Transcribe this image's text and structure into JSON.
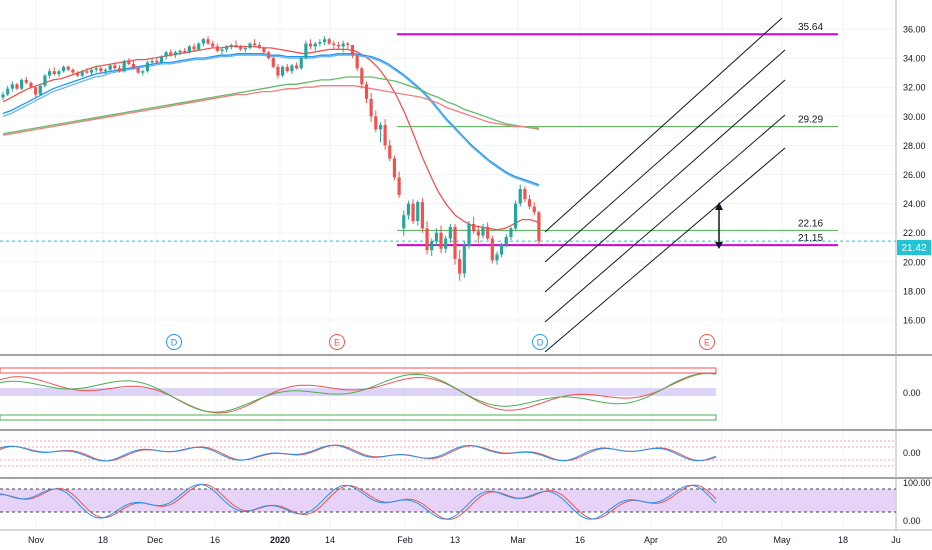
{
  "chart_data": {
    "type": "candlestick",
    "price_axis": {
      "ticks": [
        "36.00",
        "34.00",
        "32.00",
        "30.00",
        "28.00",
        "26.00",
        "24.00",
        "22.00",
        "20.00",
        "18.00",
        "16.00"
      ],
      "range": [
        14.8,
        37.0
      ]
    },
    "time_axis": {
      "labels": [
        "Nov",
        "18",
        "Dec",
        "16",
        "2020",
        "14",
        "Feb",
        "13",
        "Mar",
        "16",
        "Apr",
        "20",
        "May",
        "18",
        "Ju"
      ]
    },
    "last_price": {
      "label": "21.42",
      "value": 21.42
    },
    "levels": [
      {
        "label": "35.64",
        "value": 35.64,
        "color": "#d400d4"
      },
      {
        "label": "29.29",
        "value": 29.29,
        "color": "#4caf50"
      },
      {
        "label": "22.16",
        "value": 22.16,
        "color": "#4caf50"
      },
      {
        "label": "21.15",
        "value": 21.15,
        "color": "#d400d4"
      }
    ],
    "event_markers": [
      {
        "letter": "D",
        "color": "#2196f3"
      },
      {
        "letter": "E",
        "color": "#ef5350"
      },
      {
        "letter": "D",
        "color": "#2196f3"
      },
      {
        "letter": "E",
        "color": "#ef5350"
      }
    ],
    "candles": [
      [
        31.3,
        31.7,
        31.1,
        31.5
      ],
      [
        31.5,
        32.1,
        31.4,
        31.9
      ],
      [
        31.9,
        32.4,
        31.7,
        32.2
      ],
      [
        32.2,
        32.3,
        31.8,
        31.9
      ],
      [
        31.9,
        32.6,
        31.8,
        32.5
      ],
      [
        32.5,
        32.7,
        32.2,
        32.3
      ],
      [
        32.3,
        32.4,
        31.9,
        32.0
      ],
      [
        32.0,
        32.1,
        31.3,
        31.5
      ],
      [
        31.5,
        32.2,
        31.4,
        32.1
      ],
      [
        32.1,
        32.9,
        32.0,
        32.8
      ],
      [
        32.8,
        33.3,
        32.6,
        33.1
      ],
      [
        33.1,
        33.4,
        32.8,
        32.9
      ],
      [
        32.9,
        33.2,
        32.7,
        33.1
      ],
      [
        33.1,
        33.5,
        33.0,
        33.4
      ],
      [
        33.4,
        33.5,
        33.1,
        33.2
      ],
      [
        33.2,
        33.3,
        32.9,
        33.0
      ],
      [
        33.0,
        33.1,
        32.7,
        32.8
      ],
      [
        32.8,
        33.2,
        32.7,
        33.1
      ],
      [
        33.1,
        33.3,
        32.9,
        33.0
      ],
      [
        33.0,
        33.3,
        32.8,
        33.2
      ],
      [
        33.2,
        33.5,
        33.0,
        33.3
      ],
      [
        33.3,
        33.4,
        33.0,
        33.1
      ],
      [
        33.1,
        33.3,
        32.9,
        33.2
      ],
      [
        33.2,
        33.6,
        33.1,
        33.5
      ],
      [
        33.5,
        33.7,
        33.2,
        33.3
      ],
      [
        33.3,
        33.5,
        33.0,
        33.1
      ],
      [
        33.1,
        33.9,
        33.0,
        33.8
      ],
      [
        33.8,
        34.0,
        33.5,
        33.6
      ],
      [
        33.6,
        33.8,
        33.2,
        33.3
      ],
      [
        33.3,
        33.4,
        32.9,
        33.0
      ],
      [
        33.0,
        33.2,
        32.8,
        33.1
      ],
      [
        33.1,
        33.8,
        33.0,
        33.7
      ],
      [
        33.7,
        34.0,
        33.5,
        33.8
      ],
      [
        33.8,
        34.0,
        33.6,
        33.7
      ],
      [
        33.7,
        34.2,
        33.6,
        34.1
      ],
      [
        34.1,
        34.5,
        33.9,
        34.4
      ],
      [
        34.4,
        34.6,
        34.1,
        34.2
      ],
      [
        34.2,
        34.5,
        34.0,
        34.4
      ],
      [
        34.4,
        34.6,
        34.2,
        34.5
      ],
      [
        34.5,
        34.7,
        34.3,
        34.4
      ],
      [
        34.4,
        34.9,
        34.3,
        34.8
      ],
      [
        34.8,
        35.0,
        34.5,
        34.6
      ],
      [
        34.6,
        35.1,
        34.5,
        35.0
      ],
      [
        35.0,
        35.4,
        34.8,
        35.3
      ],
      [
        35.3,
        35.5,
        34.9,
        35.0
      ],
      [
        35.0,
        35.2,
        34.7,
        34.8
      ],
      [
        34.8,
        35.0,
        34.4,
        34.5
      ],
      [
        34.5,
        34.7,
        34.2,
        34.6
      ],
      [
        34.6,
        34.9,
        34.4,
        34.8
      ],
      [
        34.8,
        35.0,
        34.6,
        34.9
      ],
      [
        34.9,
        35.2,
        34.7,
        34.8
      ],
      [
        34.8,
        34.9,
        34.5,
        34.6
      ],
      [
        34.6,
        34.8,
        34.4,
        34.7
      ],
      [
        34.7,
        35.1,
        34.6,
        35.0
      ],
      [
        35.0,
        35.3,
        34.8,
        34.9
      ],
      [
        34.9,
        35.1,
        34.6,
        34.7
      ],
      [
        34.7,
        34.8,
        34.3,
        34.4
      ],
      [
        34.4,
        34.5,
        33.9,
        34.0
      ],
      [
        34.0,
        34.1,
        33.3,
        33.4
      ],
      [
        33.4,
        33.6,
        32.6,
        32.8
      ],
      [
        32.8,
        33.5,
        32.7,
        33.4
      ],
      [
        33.4,
        33.6,
        33.0,
        33.1
      ],
      [
        33.1,
        33.6,
        32.9,
        33.5
      ],
      [
        33.5,
        33.7,
        33.2,
        33.3
      ],
      [
        33.3,
        34.1,
        33.2,
        34.0
      ],
      [
        34.0,
        35.2,
        33.9,
        35.0
      ],
      [
        35.0,
        35.3,
        34.6,
        34.8
      ],
      [
        34.8,
        35.1,
        34.5,
        35.0
      ],
      [
        35.0,
        35.3,
        34.8,
        35.1
      ],
      [
        35.1,
        35.5,
        34.9,
        35.3
      ],
      [
        35.3,
        35.4,
        34.9,
        35.0
      ],
      [
        35.0,
        35.2,
        34.6,
        34.9
      ],
      [
        34.9,
        35.1,
        34.6,
        34.8
      ],
      [
        34.8,
        35.2,
        34.4,
        35.0
      ],
      [
        35.0,
        35.1,
        34.6,
        34.9
      ],
      [
        34.9,
        34.9,
        34.0,
        34.2
      ],
      [
        34.2,
        34.3,
        33.1,
        33.3
      ],
      [
        33.3,
        33.4,
        31.9,
        32.2
      ],
      [
        32.2,
        32.4,
        30.9,
        31.2
      ],
      [
        31.2,
        31.6,
        29.6,
        30.0
      ],
      [
        30.0,
        30.4,
        28.9,
        29.1
      ],
      [
        29.1,
        29.6,
        28.2,
        29.4
      ],
      [
        29.4,
        29.8,
        27.7,
        28.0
      ],
      [
        28.0,
        28.4,
        26.9,
        27.1
      ],
      [
        27.1,
        27.3,
        25.6,
        25.8
      ],
      [
        25.8,
        26.2,
        24.4,
        24.6
      ],
      [
        22.3,
        23.5,
        21.8,
        23.2
      ],
      [
        23.2,
        24.2,
        22.9,
        24.0
      ],
      [
        24.0,
        24.3,
        22.6,
        22.8
      ],
      [
        22.8,
        24.2,
        22.5,
        24.1
      ],
      [
        24.1,
        24.4,
        22.0,
        22.3
      ],
      [
        22.3,
        22.8,
        20.5,
        20.8
      ],
      [
        20.8,
        21.6,
        20.4,
        21.4
      ],
      [
        21.4,
        22.3,
        21.1,
        22.0
      ],
      [
        22.0,
        22.5,
        20.6,
        20.9
      ],
      [
        20.9,
        21.8,
        20.6,
        21.6
      ],
      [
        21.6,
        22.6,
        21.3,
        22.4
      ],
      [
        22.4,
        22.6,
        19.8,
        20.2
      ],
      [
        20.2,
        20.8,
        18.7,
        19.2
      ],
      [
        19.2,
        21.4,
        18.9,
        21.1
      ],
      [
        21.1,
        22.8,
        20.9,
        22.6
      ],
      [
        22.6,
        23.1,
        21.9,
        22.1
      ],
      [
        22.1,
        22.5,
        21.3,
        21.8
      ],
      [
        21.8,
        22.6,
        21.6,
        22.4
      ],
      [
        22.4,
        22.7,
        21.5,
        21.6
      ],
      [
        21.6,
        21.8,
        19.9,
        20.1
      ],
      [
        20.1,
        20.7,
        19.8,
        20.5
      ],
      [
        20.5,
        21.3,
        20.3,
        21.2
      ],
      [
        21.2,
        21.9,
        21.0,
        21.7
      ],
      [
        21.7,
        22.4,
        21.5,
        22.3
      ],
      [
        22.3,
        24.2,
        22.1,
        24.0
      ],
      [
        24.0,
        25.3,
        23.8,
        25.0
      ],
      [
        25.0,
        25.2,
        24.1,
        24.3
      ],
      [
        24.3,
        24.6,
        23.6,
        23.8
      ],
      [
        23.8,
        24.1,
        23.2,
        23.4
      ],
      [
        23.4,
        23.5,
        21.2,
        21.42
      ]
    ],
    "series": [
      {
        "name": "",
        "color": "#ef5350",
        "values": [
          31.0,
          31.3,
          31.6,
          31.9,
          32.1,
          32.3,
          32.5,
          32.6,
          32.8,
          33.0,
          33.2,
          33.4,
          33.5,
          33.6,
          33.7,
          33.8,
          33.9,
          33.9,
          34.0,
          34.1,
          34.2,
          34.3,
          34.4,
          34.5,
          34.6,
          34.7,
          34.7,
          34.8,
          34.8,
          34.8,
          34.8,
          34.7,
          34.7,
          34.6,
          34.5,
          34.4,
          34.3,
          34.4,
          34.5,
          34.6,
          34.6,
          34.6,
          34.5,
          34.2,
          33.8,
          33.2,
          32.4,
          31.4,
          30.2,
          28.8,
          27.3,
          26.0,
          24.8,
          23.9,
          23.2,
          22.8,
          22.5,
          22.4,
          22.3,
          22.2,
          22.3,
          22.6,
          22.9,
          22.9,
          22.7
        ]
      },
      {
        "name": "",
        "color": "#2196f3",
        "values": [
          30.2,
          30.4,
          30.7,
          31.0,
          31.3,
          31.6,
          31.9,
          32.1,
          32.3,
          32.5,
          32.7,
          32.9,
          33.0,
          33.1,
          33.2,
          33.3,
          33.4,
          33.5,
          33.6,
          33.7,
          33.7,
          33.8,
          33.9,
          34.0,
          34.0,
          34.1,
          34.2,
          34.2,
          34.3,
          34.3,
          34.3,
          34.3,
          34.2,
          34.2,
          34.1,
          34.1,
          34.1,
          34.1,
          34.2,
          34.2,
          34.3,
          34.3,
          34.3,
          34.2,
          34.1,
          33.9,
          33.6,
          33.2,
          32.8,
          32.3,
          31.8,
          31.2,
          30.5,
          29.8,
          29.2,
          28.6,
          28.0,
          27.5,
          27.0,
          26.6,
          26.2,
          25.9,
          25.7,
          25.5,
          25.3
        ]
      },
      {
        "name": "",
        "color": "#6fb6e8",
        "values": [
          30.0,
          30.2,
          30.5,
          30.8,
          31.1,
          31.4,
          31.7,
          31.9,
          32.1,
          32.3,
          32.5,
          32.7,
          32.8,
          33.0,
          33.1,
          33.2,
          33.3,
          33.4,
          33.5,
          33.6,
          33.6,
          33.7,
          33.8,
          33.9,
          33.9,
          34.0,
          34.1,
          34.1,
          34.2,
          34.2,
          34.2,
          34.2,
          34.1,
          34.1,
          34.0,
          34.0,
          34.0,
          34.0,
          34.1,
          34.1,
          34.2,
          34.2,
          34.2,
          34.1,
          34.0,
          33.8,
          33.5,
          33.1,
          32.7,
          32.2,
          31.7,
          31.1,
          30.4,
          29.7,
          29.1,
          28.5,
          27.9,
          27.4,
          26.9,
          26.5,
          26.1,
          25.8,
          25.6,
          25.4,
          25.2
        ]
      },
      {
        "name": "",
        "color": "#66bb6a",
        "values": [
          28.8,
          28.9,
          29.0,
          29.1,
          29.2,
          29.3,
          29.4,
          29.5,
          29.6,
          29.7,
          29.8,
          29.9,
          30.0,
          30.1,
          30.2,
          30.3,
          30.4,
          30.5,
          30.6,
          30.7,
          30.8,
          30.9,
          31.0,
          31.1,
          31.2,
          31.3,
          31.4,
          31.5,
          31.6,
          31.7,
          31.8,
          31.9,
          32.0,
          32.1,
          32.2,
          32.2,
          32.3,
          32.4,
          32.5,
          32.5,
          32.6,
          32.7,
          32.7,
          32.7,
          32.7,
          32.6,
          32.5,
          32.4,
          32.2,
          32.0,
          31.8,
          31.5,
          31.3,
          31.0,
          30.8,
          30.5,
          30.3,
          30.1,
          29.9,
          29.7,
          29.5,
          29.4,
          29.3,
          29.2,
          29.1
        ]
      },
      {
        "name": "",
        "color": "#f08080",
        "values": [
          28.7,
          28.8,
          28.9,
          29.0,
          29.1,
          29.2,
          29.3,
          29.4,
          29.5,
          29.6,
          29.7,
          29.8,
          29.9,
          30.0,
          30.1,
          30.2,
          30.3,
          30.4,
          30.5,
          30.6,
          30.7,
          30.8,
          30.9,
          31.0,
          31.1,
          31.2,
          31.3,
          31.4,
          31.5,
          31.5,
          31.6,
          31.7,
          31.7,
          31.8,
          31.9,
          31.9,
          32.0,
          32.0,
          32.1,
          32.1,
          32.1,
          32.1,
          32.1,
          32.0,
          31.9,
          31.8,
          31.7,
          31.6,
          31.5,
          31.4,
          31.3,
          31.1,
          30.9,
          30.6,
          30.4,
          30.2,
          30.0,
          29.8,
          29.6,
          29.5,
          29.4,
          29.3,
          29.3,
          29.2,
          29.2
        ]
      }
    ],
    "indicator_panes": [
      {
        "ticks": [
          "0.00"
        ]
      },
      {
        "ticks": [
          "0.00"
        ]
      },
      {
        "ticks": [
          "100.00",
          "0.00"
        ]
      }
    ]
  }
}
